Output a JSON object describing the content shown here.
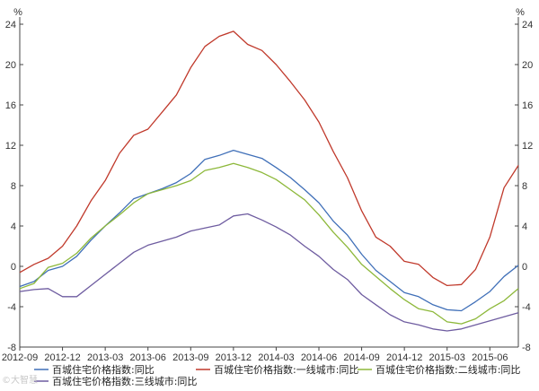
{
  "chart_data": {
    "type": "line",
    "unit_left": "%",
    "unit_right": "%",
    "ylim": [
      -8,
      24
    ],
    "yticks": [
      "-8",
      "-4",
      "0",
      "4",
      "8",
      "12",
      "16",
      "20",
      "24"
    ],
    "grid": false,
    "legend_position": "bottom",
    "x": [
      "2012-09",
      "2012-10",
      "2012-11",
      "2012-12",
      "2013-01",
      "2013-02",
      "2013-03",
      "2013-04",
      "2013-05",
      "2013-06",
      "2013-07",
      "2013-08",
      "2013-09",
      "2013-10",
      "2013-11",
      "2013-12",
      "2014-01",
      "2014-02",
      "2014-03",
      "2014-04",
      "2014-05",
      "2014-06",
      "2014-07",
      "2014-08",
      "2014-09",
      "2014-10",
      "2014-11",
      "2014-12",
      "2015-01",
      "2015-02",
      "2015-03",
      "2015-04",
      "2015-05",
      "2015-06",
      "2015-07",
      "2015-08"
    ],
    "xtick_labels": [
      "2012-09",
      "2012-12",
      "2013-03",
      "2013-06",
      "2013-09",
      "2013-12",
      "2014-03",
      "2014-06",
      "2014-09",
      "2014-12",
      "2015-03",
      "2015-06"
    ],
    "series": [
      {
        "name": "百城住宅价格指数:同比",
        "color": "#3f6fb8",
        "values": [
          -2.0,
          -1.5,
          -0.4,
          0.0,
          1.0,
          2.6,
          4.0,
          5.3,
          6.7,
          7.2,
          7.7,
          8.3,
          9.2,
          10.6,
          11.0,
          11.5,
          11.1,
          10.7,
          9.8,
          8.8,
          7.6,
          6.3,
          4.5,
          3.1,
          1.2,
          -0.4,
          -1.5,
          -2.6,
          -3.0,
          -3.8,
          -4.3,
          -4.4,
          -3.5,
          -2.5,
          -1.0,
          0.1
        ]
      },
      {
        "name": "百城住宅价格指数:一线城市:同比",
        "color": "#c0392b",
        "values": [
          -0.6,
          0.2,
          0.8,
          2.0,
          4.0,
          6.5,
          8.5,
          11.2,
          13.0,
          13.6,
          15.3,
          17.0,
          19.7,
          21.8,
          22.8,
          23.3,
          22.0,
          21.4,
          20.0,
          18.3,
          16.5,
          14.3,
          11.4,
          8.8,
          5.5,
          2.9,
          2.0,
          0.5,
          0.2,
          -1.1,
          -1.9,
          -1.8,
          -0.3,
          2.9,
          7.8,
          10.0
        ]
      },
      {
        "name": "百城住宅价格指数:二线城市:同比",
        "color": "#8db83a",
        "values": [
          -2.2,
          -1.7,
          -0.1,
          0.3,
          1.3,
          2.8,
          4.0,
          5.1,
          6.3,
          7.2,
          7.6,
          8.0,
          8.5,
          9.5,
          9.8,
          10.2,
          9.8,
          9.3,
          8.6,
          7.6,
          6.6,
          5.1,
          3.4,
          1.9,
          0.2,
          -1.0,
          -2.2,
          -3.3,
          -4.2,
          -4.5,
          -5.5,
          -5.7,
          -5.2,
          -4.2,
          -3.4,
          -2.2
        ]
      },
      {
        "name": "百城住宅价格指数:三线城市:同比",
        "color": "#6e5ca0",
        "values": [
          -2.5,
          -2.3,
          -2.2,
          -3.0,
          -3.0,
          -1.9,
          -0.8,
          0.3,
          1.4,
          2.1,
          2.5,
          2.9,
          3.5,
          3.8,
          4.1,
          5.0,
          5.2,
          4.6,
          3.9,
          3.1,
          2.0,
          1.0,
          -0.3,
          -1.3,
          -2.8,
          -3.8,
          -4.8,
          -5.5,
          -5.8,
          -6.2,
          -6.4,
          -6.2,
          -5.8,
          -5.4,
          -5.0,
          -4.6
        ]
      }
    ]
  },
  "watermark": "©大智慧"
}
